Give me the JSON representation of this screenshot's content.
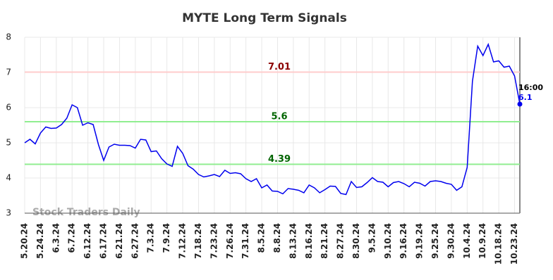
{
  "chart_data": {
    "type": "line",
    "title": "MYTE Long Term Signals",
    "categories": [
      "5.20.24",
      null,
      null,
      "5.24.24",
      null,
      null,
      "6.3.24",
      null,
      null,
      "6.7.24",
      null,
      null,
      "6.12.24",
      null,
      null,
      "6.17.24",
      null,
      null,
      "6.21.24",
      null,
      null,
      "6.27.24",
      null,
      null,
      "7.3.24",
      null,
      null,
      "7.9.24",
      null,
      null,
      "7.12.24",
      null,
      null,
      "7.18.24",
      null,
      null,
      "7.23.24",
      null,
      null,
      "7.26.24",
      null,
      null,
      "7.31.24",
      null,
      null,
      "8.5.24",
      null,
      null,
      "8.8.24",
      null,
      null,
      "8.13.24",
      null,
      null,
      "8.16.24",
      null,
      null,
      "8.21.24",
      null,
      null,
      "8.27.24",
      null,
      null,
      "8.30.24",
      null,
      null,
      "9.5.24",
      null,
      null,
      "9.10.24",
      null,
      null,
      "9.16.24",
      null,
      null,
      "9.19.24",
      null,
      null,
      "9.25.24",
      null,
      null,
      "9.30.24",
      null,
      null,
      "10.4.24",
      null,
      null,
      "10.9.24",
      null,
      null,
      "10.18.24",
      null,
      null,
      "10.23.24",
      null
    ],
    "series": [
      {
        "color": "#0000ee",
        "values": [
          5.0,
          5.1,
          4.97,
          5.28,
          5.45,
          5.41,
          5.42,
          5.52,
          5.7,
          6.08,
          6.0,
          5.5,
          5.57,
          5.52,
          4.95,
          4.5,
          4.88,
          4.96,
          4.93,
          4.93,
          4.92,
          4.85,
          5.1,
          5.08,
          4.75,
          4.77,
          4.55,
          4.4,
          4.33,
          4.9,
          4.7,
          4.35,
          4.25,
          4.1,
          4.03,
          4.06,
          4.1,
          4.04,
          4.22,
          4.13,
          4.15,
          4.12,
          3.98,
          3.9,
          3.98,
          3.72,
          3.8,
          3.63,
          3.62,
          3.55,
          3.7,
          3.68,
          3.65,
          3.58,
          3.8,
          3.72,
          3.58,
          3.67,
          3.77,
          3.76,
          3.56,
          3.53,
          3.9,
          3.73,
          3.75,
          3.87,
          4.01,
          3.9,
          3.88,
          3.75,
          3.87,
          3.9,
          3.84,
          3.75,
          3.88,
          3.85,
          3.77,
          3.9,
          3.92,
          3.9,
          3.85,
          3.82,
          3.65,
          3.75,
          4.3,
          6.75,
          7.75,
          7.48,
          7.8,
          7.3,
          7.33,
          7.15,
          7.18,
          6.9,
          6.1
        ]
      }
    ],
    "hlines": [
      {
        "value": 7.01,
        "color": "#ffcccc",
        "label_color": "#8b0000"
      },
      {
        "value": 5.6,
        "color": "#90ee90",
        "label_color": "#006400"
      },
      {
        "value": 4.39,
        "color": "#90ee90",
        "label_color": "#006400"
      }
    ],
    "last_time": "16:00",
    "watermark": "Stock Traders Daily",
    "ylim": [
      3,
      8
    ],
    "yticks": [
      3,
      4,
      5,
      6,
      7,
      8
    ],
    "grid": true
  }
}
